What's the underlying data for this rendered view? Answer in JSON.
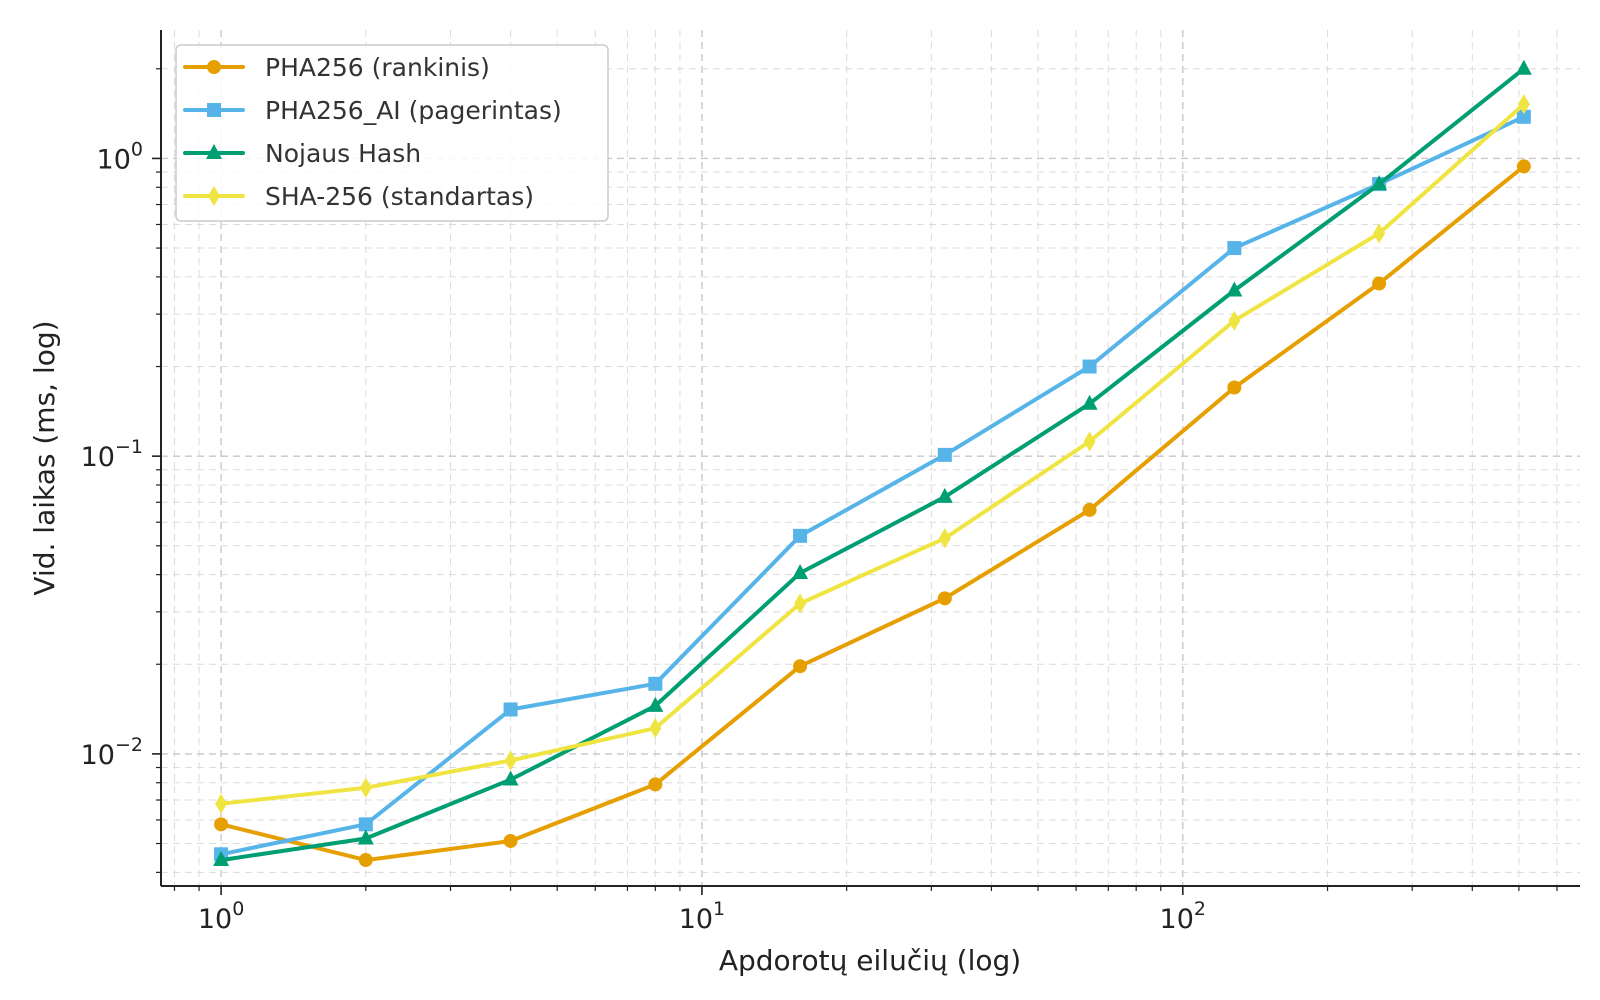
{
  "chart_data": {
    "type": "line",
    "xlabel": "Apdorotų eilučių (log)",
    "ylabel": "Vid. laikas (ms, log)",
    "xscale": "log",
    "yscale": "log",
    "xlim": [
      0.75,
      670
    ],
    "ylim": [
      0.0036,
      2.7
    ],
    "grid": "on (major and minor, dashed)",
    "legend_position": "top-left",
    "x": [
      1,
      2,
      4,
      8,
      16,
      32,
      64,
      128,
      256,
      512
    ],
    "x_ticks": [
      {
        "base": "10",
        "exp": "0",
        "value": 1
      },
      {
        "base": "10",
        "exp": "1",
        "value": 10
      },
      {
        "base": "10",
        "exp": "2",
        "value": 100
      }
    ],
    "y_ticks": [
      {
        "base": "10",
        "exp": "0",
        "value": 1
      },
      {
        "base": "10",
        "exp": "−1",
        "value": 0.1
      },
      {
        "base": "10",
        "exp": "−2",
        "value": 0.01
      }
    ],
    "series": [
      {
        "name": "PHA256 (rankinis)",
        "color": "#E69F00",
        "marker": "circle",
        "values": [
          0.0058,
          0.0044,
          0.0051,
          0.0079,
          0.0197,
          0.0333,
          0.066,
          0.17,
          0.38,
          0.94
        ]
      },
      {
        "name": "PHA256_AI (pagerintas)",
        "color": "#56B4E9",
        "marker": "square",
        "values": [
          0.0046,
          0.0058,
          0.0141,
          0.0172,
          0.054,
          0.101,
          0.2,
          0.5,
          0.82,
          1.38
        ]
      },
      {
        "name": "Nojaus Hash",
        "color": "#009E73",
        "marker": "triangle",
        "values": [
          0.0044,
          0.0052,
          0.0082,
          0.0145,
          0.0405,
          0.073,
          0.15,
          0.36,
          0.82,
          2.0
        ]
      },
      {
        "name": "SHA-256 (standartas)",
        "color": "#F0E442",
        "marker": "diamond",
        "values": [
          0.0068,
          0.0077,
          0.0095,
          0.0122,
          0.032,
          0.053,
          0.112,
          0.285,
          0.56,
          1.52
        ]
      }
    ]
  }
}
